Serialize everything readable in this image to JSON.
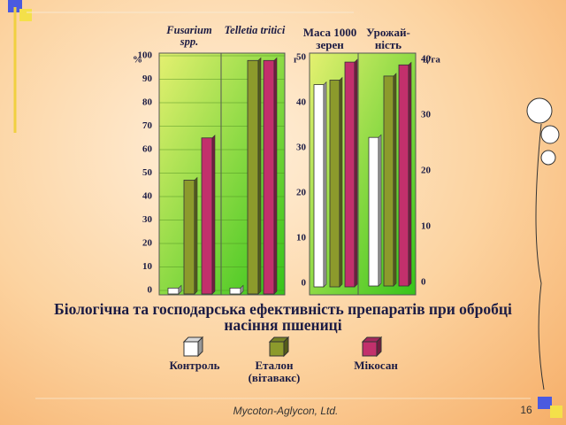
{
  "title": "Біологічна та господарська ефективність препаратів при обробці насіння пшениці",
  "footer": "Mycoton-Aglycon, Ltd.",
  "page_number": "16",
  "chart_data": [
    {
      "type": "bar",
      "categories": [
        "Fusarium spp.",
        "Telletia tritici"
      ],
      "y_unit": "%",
      "ylim": [
        0,
        100
      ],
      "yticks": [
        0,
        10,
        20,
        30,
        40,
        50,
        60,
        70,
        80,
        90,
        100
      ],
      "grid": true,
      "series": [
        {
          "name": "Контроль",
          "color": "#ffffff",
          "values": [
            1,
            1
          ]
        },
        {
          "name": "Еталон (вітавакс)",
          "color": "#8c9a2c",
          "values": [
            47,
            98
          ]
        },
        {
          "name": "Мікосан",
          "color": "#c2306c",
          "values": [
            65,
            98
          ]
        }
      ]
    },
    {
      "type": "bar",
      "title": "Маса 1000 зерен",
      "y_unit": "г",
      "ylim": [
        0,
        50
      ],
      "yticks": [
        0,
        10,
        20,
        30,
        40,
        50
      ],
      "grid": false,
      "series": [
        {
          "name": "Контроль",
          "color": "#ffffff",
          "values": [
            44
          ]
        },
        {
          "name": "Еталон (вітавакс)",
          "color": "#8c9a2c",
          "values": [
            45
          ]
        },
        {
          "name": "Мікосан",
          "color": "#c2306c",
          "values": [
            49
          ]
        }
      ]
    },
    {
      "type": "bar",
      "title": "Урожай-ність",
      "y_unit": "ц/га",
      "ylim": [
        0,
        40
      ],
      "yticks": [
        0,
        10,
        20,
        30,
        40
      ],
      "grid": false,
      "series": [
        {
          "name": "Контроль",
          "color": "#ffffff",
          "values": [
            26
          ]
        },
        {
          "name": "Еталон (вітавакс)",
          "color": "#8c9a2c",
          "values": [
            37
          ]
        },
        {
          "name": "Мікосан",
          "color": "#c2306c",
          "values": [
            39
          ]
        }
      ]
    }
  ]
}
